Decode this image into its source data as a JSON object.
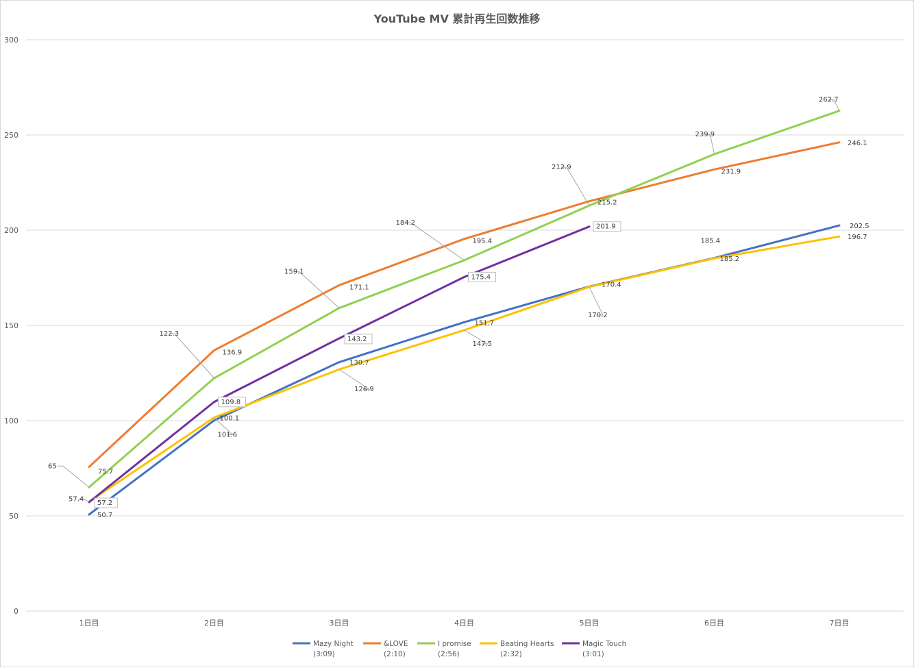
{
  "chart_data": {
    "type": "line",
    "title": "YouTube MV 累計再生回数推移",
    "xlabel": "",
    "ylabel": "",
    "categories": [
      "1日目",
      "2日目",
      "3日目",
      "4日目",
      "5日目",
      "6日目",
      "7日目"
    ],
    "ylim": [
      0,
      300
    ],
    "yticks": [
      0,
      50,
      100,
      150,
      200,
      250,
      300
    ],
    "grid": true,
    "legend_position": "bottom",
    "series": [
      {
        "name": "Mazy Night",
        "sub": "(3:09)",
        "color": "#4472c4",
        "values": [
          50.7,
          100.1,
          130.7,
          151.7,
          170.4,
          185.4,
          202.5
        ],
        "labels": [
          "50.7",
          "100.1",
          "130.7",
          "151.7",
          "170.4",
          "185.4",
          "202.5"
        ]
      },
      {
        "name": "&LOVE",
        "sub": "(2:10)",
        "color": "#ed7d31",
        "values": [
          75.7,
          136.9,
          171.1,
          195.4,
          215.2,
          231.9,
          246.1
        ],
        "labels": [
          "75.7",
          "136.9",
          "171.1",
          "195.4",
          "215.2",
          "231.9",
          "246.1"
        ]
      },
      {
        "name": "I promise",
        "sub": "(2:56)",
        "color": "#92d050",
        "values": [
          65,
          122.3,
          159.1,
          184.2,
          212.9,
          239.9,
          262.7
        ],
        "labels": [
          "65",
          "122.3",
          "159.1",
          "184.2",
          "212.9",
          "239.9",
          "262.7"
        ]
      },
      {
        "name": "Beating Hearts",
        "sub": "(2:32)",
        "color": "#ffc000",
        "values": [
          57.4,
          101.6,
          126.9,
          147.5,
          170.2,
          185.2,
          196.7
        ],
        "labels": [
          "57.4",
          "101.6",
          "126.9",
          "147.5",
          "170.2",
          "185.2",
          "196.7"
        ]
      },
      {
        "name": "Magic Touch",
        "sub": "(3:01)",
        "color": "#7030a0",
        "values": [
          57.2,
          109.8,
          143.2,
          175.4,
          201.9,
          null,
          null
        ],
        "labels": [
          "57.2",
          "109.8",
          "143.2",
          "175.4",
          "201.9",
          null,
          null
        ]
      }
    ]
  }
}
